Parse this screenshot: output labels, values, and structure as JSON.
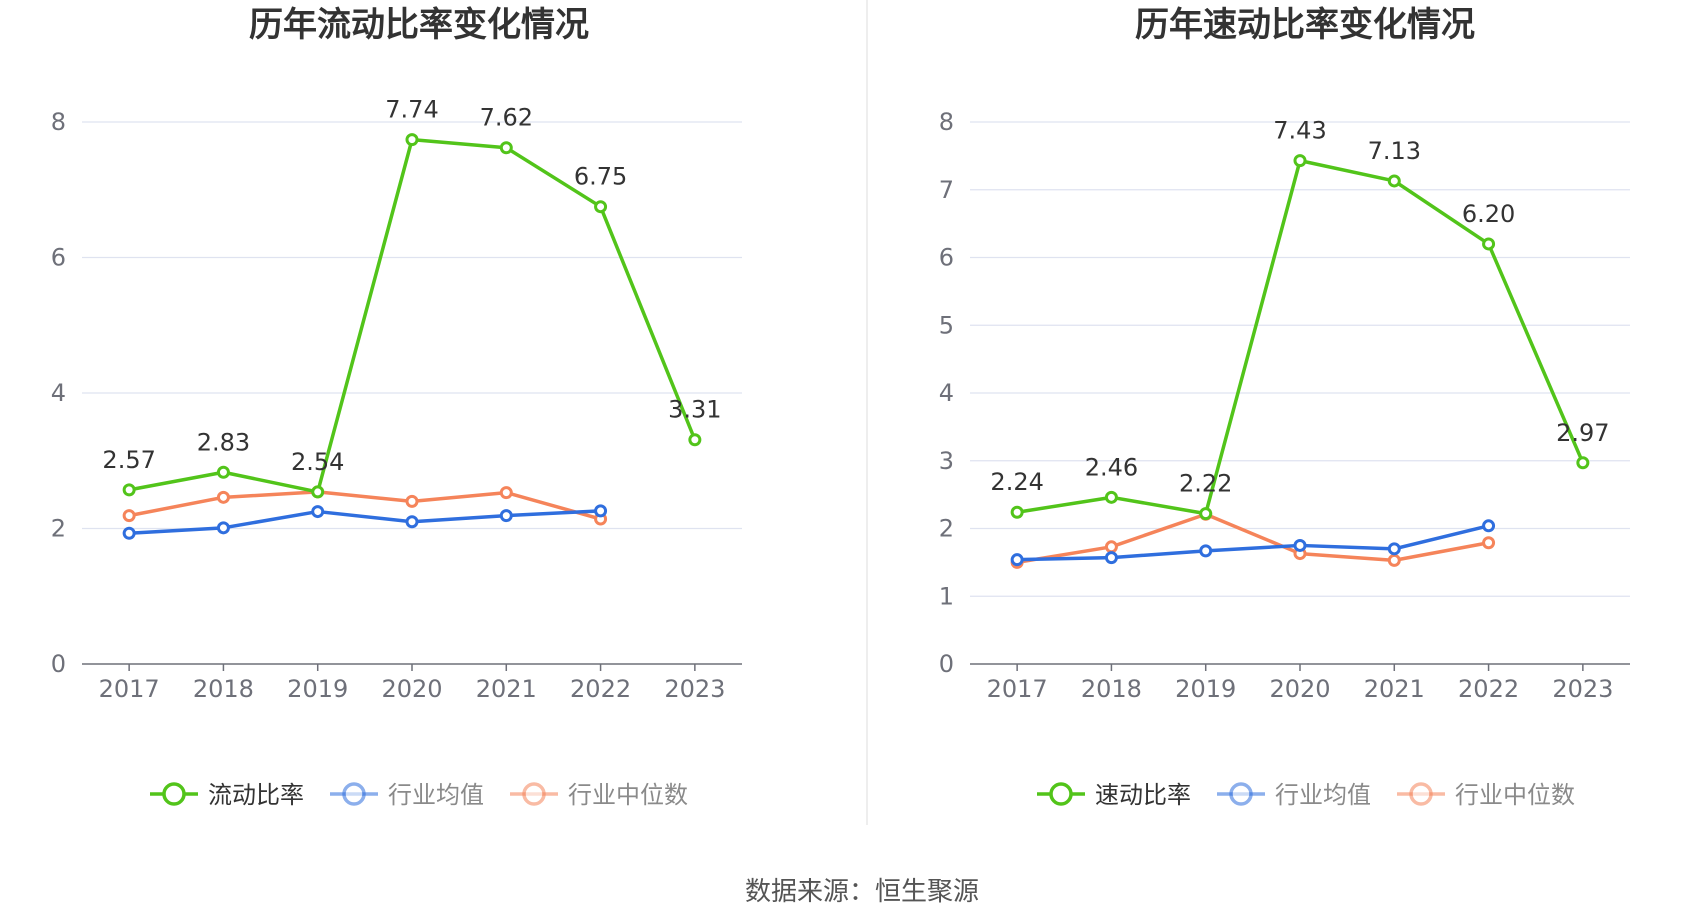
{
  "source": "数据来源：恒生聚源",
  "chart_data": [
    {
      "type": "line",
      "title": "历年流动比率变化情况",
      "categories": [
        "2017",
        "2018",
        "2019",
        "2020",
        "2021",
        "2022",
        "2023"
      ],
      "ylim": [
        0,
        8
      ],
      "yticks": [
        0,
        2,
        4,
        6,
        8
      ],
      "grid": true,
      "legend_position": "bottom",
      "series": [
        {
          "name": "流动比率",
          "color": "#52c41a",
          "values": [
            2.57,
            2.83,
            2.54,
            7.74,
            7.62,
            6.75,
            3.31
          ],
          "labels": [
            "2.57",
            "2.83",
            "2.54",
            "7.74",
            "7.62",
            "6.75",
            "3.31"
          ]
        },
        {
          "name": "行业均值",
          "color": "#2f6ede",
          "values": [
            1.93,
            2.01,
            2.25,
            2.1,
            2.19,
            2.26,
            null
          ]
        },
        {
          "name": "行业中位数",
          "color": "#f5845a",
          "values": [
            2.19,
            2.46,
            2.54,
            2.4,
            2.53,
            2.14,
            null
          ]
        }
      ]
    },
    {
      "type": "line",
      "title": "历年速动比率变化情况",
      "categories": [
        "2017",
        "2018",
        "2019",
        "2020",
        "2021",
        "2022",
        "2023"
      ],
      "ylim": [
        0,
        8
      ],
      "yticks": [
        0,
        1,
        2,
        3,
        4,
        5,
        6,
        7,
        8
      ],
      "grid": true,
      "legend_position": "bottom",
      "series": [
        {
          "name": "速动比率",
          "color": "#52c41a",
          "values": [
            2.24,
            2.46,
            2.22,
            7.43,
            7.13,
            6.2,
            2.97
          ],
          "labels": [
            "2.24",
            "2.46",
            "2.22",
            "7.43",
            "7.13",
            "6.20",
            "2.97"
          ]
        },
        {
          "name": "行业均值",
          "color": "#2f6ede",
          "values": [
            1.54,
            1.57,
            1.67,
            1.75,
            1.7,
            2.04,
            null
          ]
        },
        {
          "name": "行业中位数",
          "color": "#f5845a",
          "values": [
            1.5,
            1.73,
            2.21,
            1.63,
            1.53,
            1.79,
            null
          ]
        }
      ]
    }
  ]
}
